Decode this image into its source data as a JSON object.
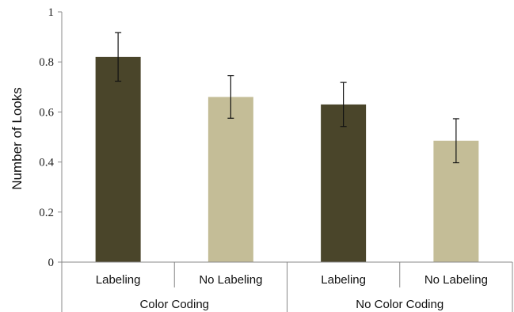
{
  "chart_data": {
    "type": "bar",
    "title": "",
    "xlabel": "",
    "ylabel": "Number of Looks",
    "ylim": [
      0,
      1
    ],
    "yticks": [
      "0",
      "0.2",
      "0.4",
      "0.6",
      "0.8",
      "1"
    ],
    "grid": false,
    "groups": [
      "Color Coding",
      "No Color Coding"
    ],
    "categories": [
      "Labeling",
      "No Labeling",
      "Labeling",
      "No Labeling"
    ],
    "values": [
      0.82,
      0.66,
      0.63,
      0.485
    ],
    "errors": [
      0.097,
      0.085,
      0.088,
      0.088
    ],
    "colors": [
      "#4a452a",
      "#c4bd97",
      "#4a452a",
      "#c4bd97"
    ]
  }
}
